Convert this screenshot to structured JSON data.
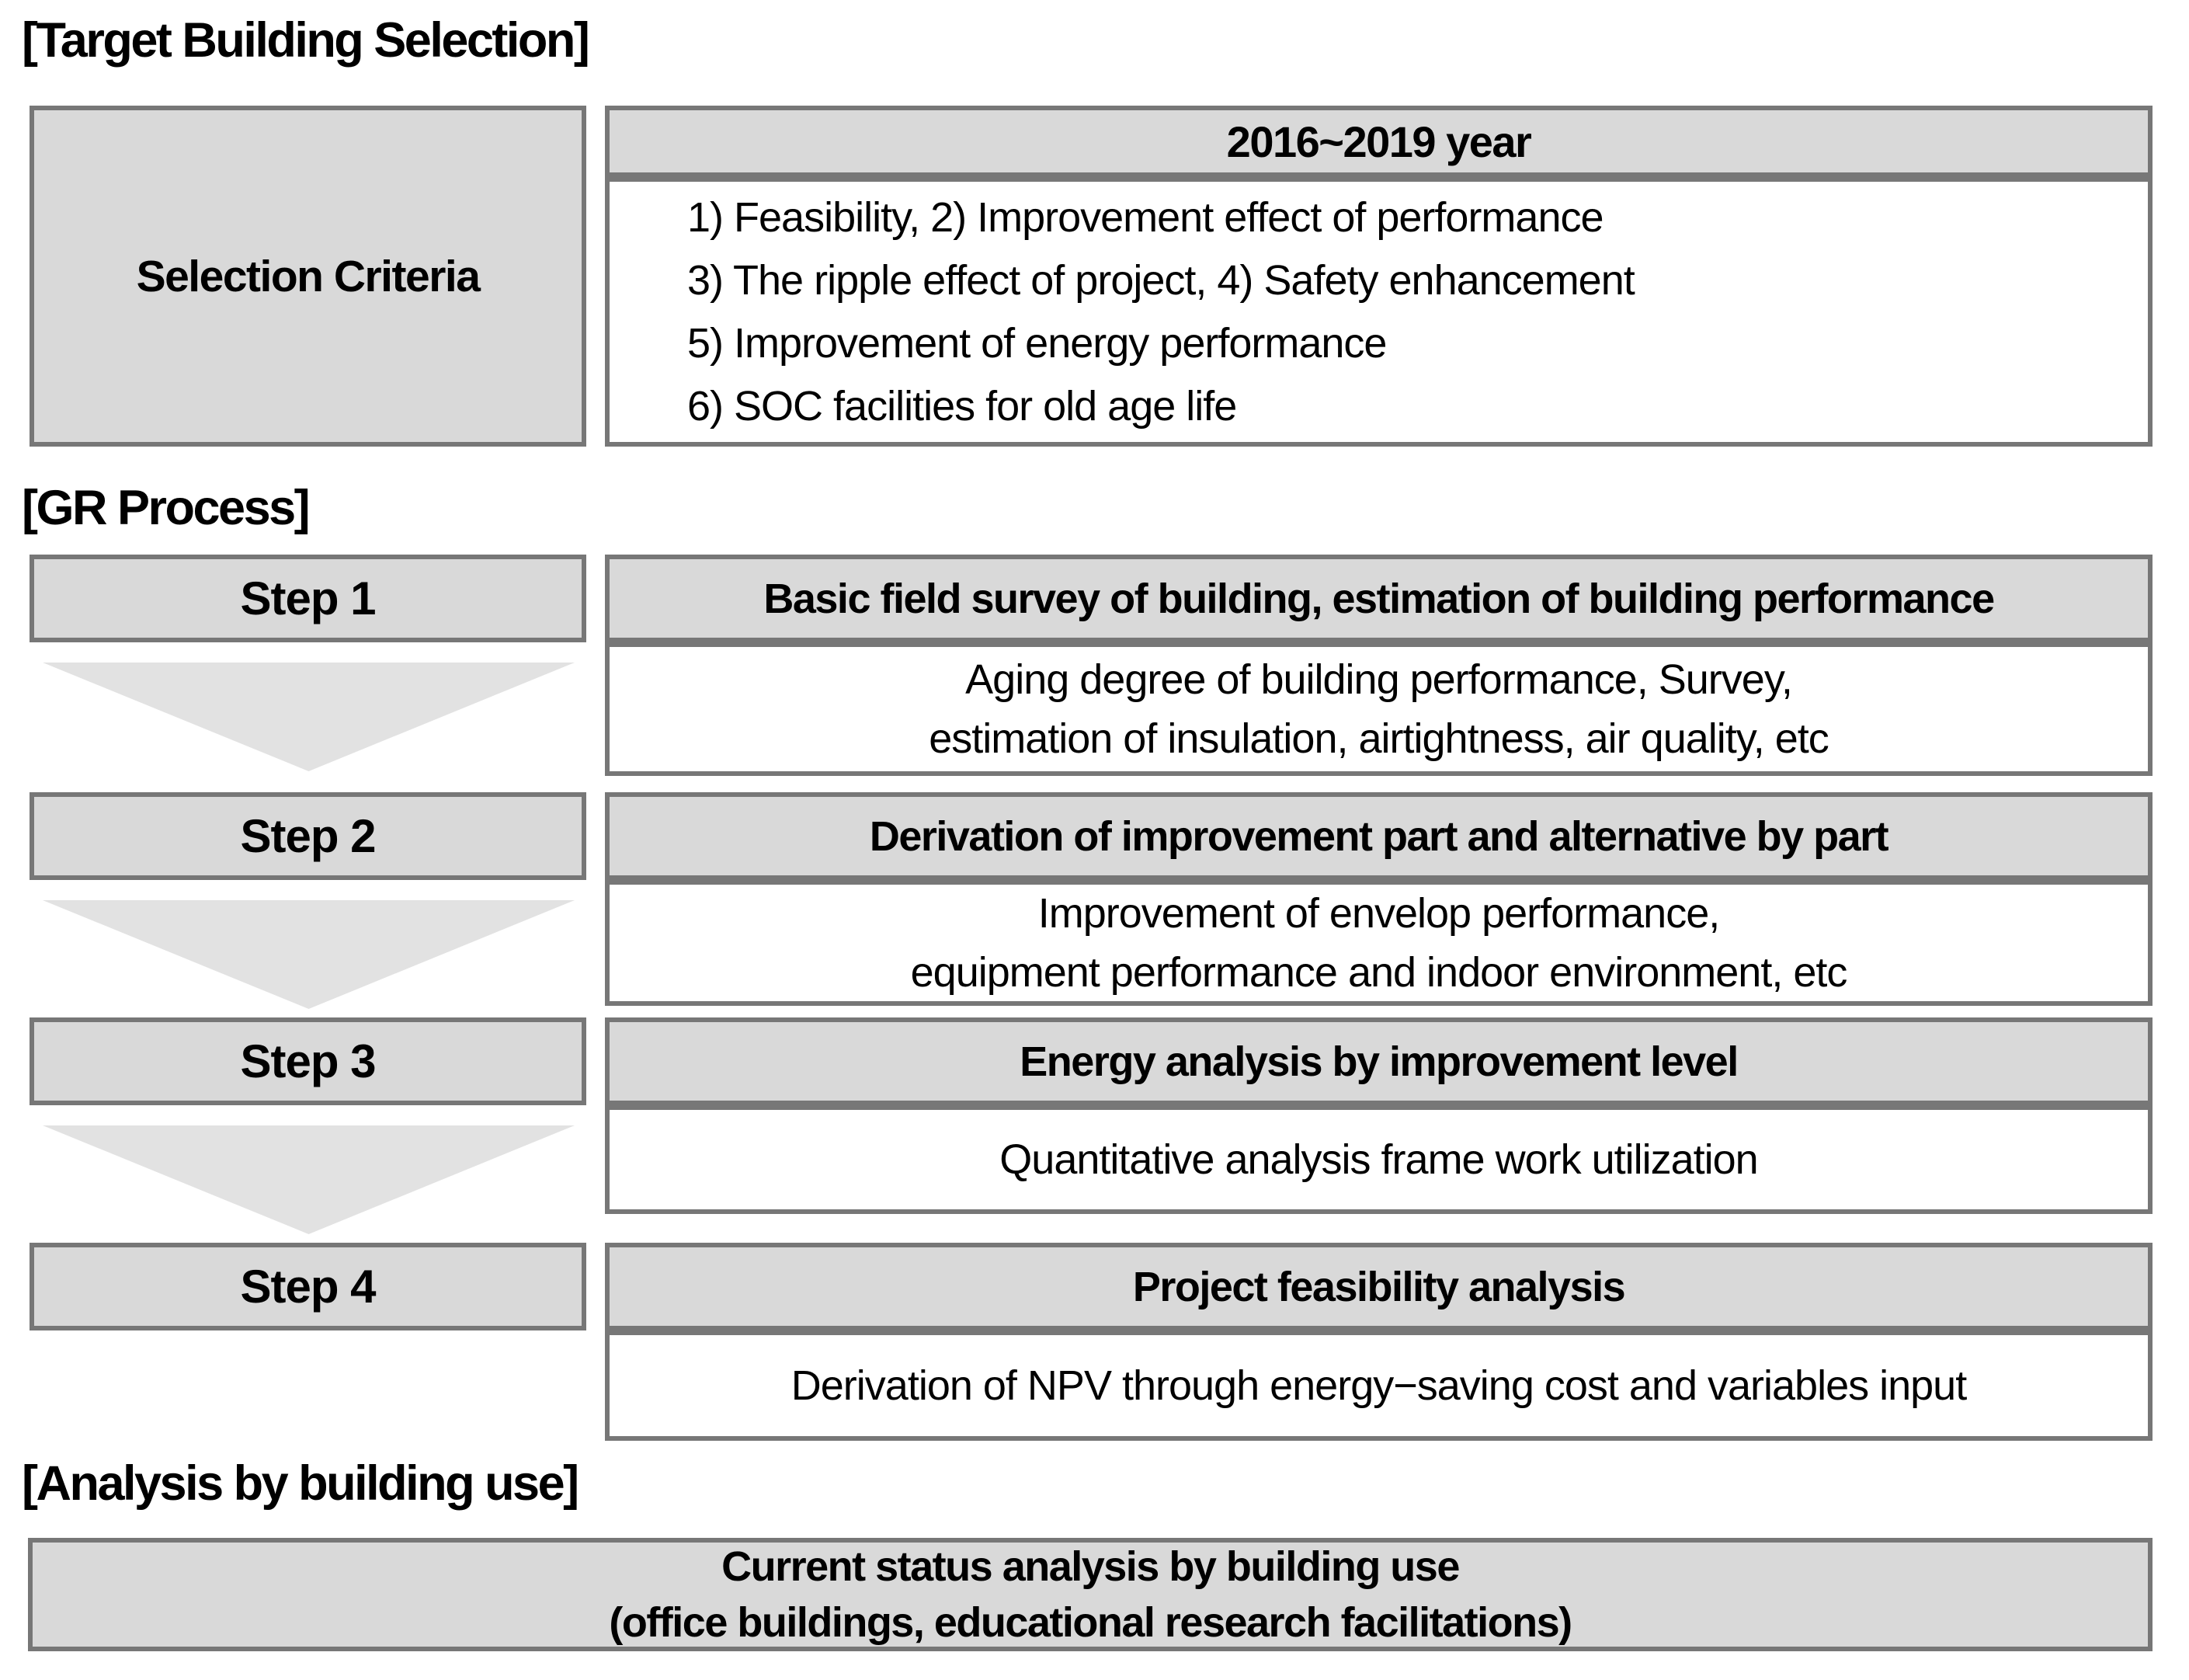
{
  "colors": {
    "box_fill": "#d9d9d9",
    "box_border": "#777777",
    "arrow_fill": "#e2e2e2",
    "text": "#000000",
    "background": "#ffffff"
  },
  "target_building_selection": {
    "title": "[Target Building Selection]",
    "row_label": "Selection Criteria",
    "period_header": "2016~2019 year",
    "criteria": [
      "1) Feasibility, 2) Improvement effect of performance",
      "3) The ripple effect of project, 4) Safety enhancement",
      "5) Improvement of energy performance",
      "6) SOC facilities for old age life"
    ]
  },
  "gr_process": {
    "title": "[GR Process]",
    "steps": [
      {
        "label": "Step 1",
        "header": "Basic field survey of building, estimation of building performance",
        "details": [
          "Aging degree of building performance, Survey,",
          "estimation of insulation, airtightness, air quality, etc"
        ]
      },
      {
        "label": "Step 2",
        "header": "Derivation of improvement part and alternative by part",
        "details": [
          "Improvement of envelop performance,",
          "equipment performance and indoor environment, etc"
        ]
      },
      {
        "label": "Step 3",
        "header": "Energy analysis by improvement level",
        "details": [
          "Quantitative analysis frame work utilization"
        ]
      },
      {
        "label": "Step 4",
        "header": "Project feasibility analysis",
        "details": [
          "Derivation of NPV through energy−saving cost and variables input"
        ]
      }
    ]
  },
  "analysis_by_building_use": {
    "title": "[Analysis by building use]",
    "lines": [
      "Current status analysis by building use",
      "(office buildings, educational research facilitations)"
    ]
  }
}
